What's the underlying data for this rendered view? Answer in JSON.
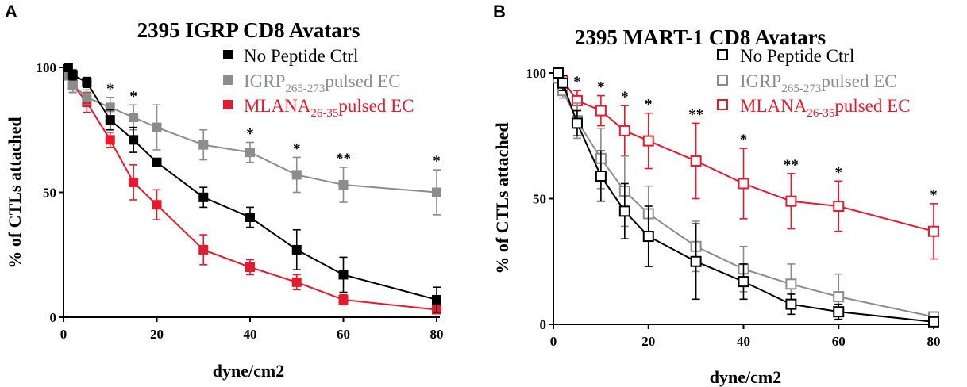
{
  "chart_data": [
    {
      "panel": "A",
      "type": "line",
      "title": "2395 IGRP CD8 Avatars",
      "xlabel": "dyne/cm2",
      "ylabel": "% of CTLs attached",
      "xlim": [
        0,
        80
      ],
      "ylim": [
        0,
        100
      ],
      "xticks": [
        "0",
        "20",
        "40",
        "60",
        "80"
      ],
      "yticks": [
        "0",
        "50",
        "100"
      ],
      "marker": "filled-square",
      "x": [
        1,
        2,
        5,
        10,
        15,
        20,
        30,
        40,
        50,
        60,
        80
      ],
      "series": [
        {
          "name": "No Peptide Ctrl",
          "legend_main": "No Peptide Ctrl",
          "legend_sub": "",
          "legend_tail": "",
          "color": "#000000",
          "values": [
            100,
            97,
            94,
            79,
            71,
            62,
            48,
            40,
            27,
            17,
            7
          ],
          "errors": [
            1,
            2,
            2,
            4,
            5,
            1,
            4,
            4,
            8,
            7,
            5
          ]
        },
        {
          "name": "IGRP265-273pulsed EC",
          "legend_main": "IGRP",
          "legend_sub": "265-273",
          "legend_tail": "pulsed EC",
          "color": "#8c8c8c",
          "values": [
            97,
            93,
            88,
            84,
            80,
            76,
            69,
            66,
            57,
            53,
            50
          ],
          "errors": [
            2,
            3,
            3,
            4,
            5,
            9,
            6,
            4,
            7,
            7,
            9
          ]
        },
        {
          "name": "MLANA26-35pulsed EC",
          "legend_main": "MLANA",
          "legend_sub": "26-35",
          "legend_tail": "pulsed EC",
          "color": "#e8192c",
          "values": [
            97,
            93,
            86,
            71,
            54,
            45,
            27,
            20,
            14,
            7,
            3
          ],
          "errors": [
            2,
            3,
            4,
            3,
            7,
            6,
            6,
            3,
            3,
            2,
            1
          ]
        }
      ],
      "significance": [
        {
          "x": 10,
          "label": "*"
        },
        {
          "x": 15,
          "label": "*"
        },
        {
          "x": 40,
          "label": "*"
        },
        {
          "x": 50,
          "label": "*"
        },
        {
          "x": 60,
          "label": "**"
        },
        {
          "x": 80,
          "label": "*"
        }
      ]
    },
    {
      "panel": "B",
      "type": "line",
      "title": "2395 MART-1 CD8 Avatars",
      "xlabel": "dyne/cm2",
      "ylabel": "% of CTLs attached",
      "xlim": [
        0,
        80
      ],
      "ylim": [
        0,
        100
      ],
      "xticks": [
        "0",
        "20",
        "40",
        "60",
        "80"
      ],
      "yticks": [
        "0",
        "50",
        "100"
      ],
      "marker": "open-square",
      "x": [
        1,
        2,
        5,
        10,
        15,
        20,
        30,
        40,
        50,
        60,
        80
      ],
      "series": [
        {
          "name": "No Peptide Ctrl",
          "legend_main": "No Peptide Ctrl",
          "legend_sub": "",
          "legend_tail": "",
          "color": "#000000",
          "values": [
            100,
            96,
            80,
            59,
            45,
            35,
            25,
            17,
            8,
            5,
            1
          ],
          "errors": [
            1,
            3,
            5,
            10,
            11,
            12,
            15,
            7,
            4,
            3,
            1
          ]
        },
        {
          "name": "IGRP265-273pulsed EC",
          "legend_main": "IGRP",
          "legend_sub": "265-273",
          "legend_tail": "pulsed EC",
          "color": "#8c8c8c",
          "values": [
            98,
            93,
            81,
            66,
            53,
            44,
            31,
            22,
            16,
            11,
            3
          ],
          "errors": [
            2,
            3,
            7,
            12,
            14,
            11,
            10,
            9,
            8,
            9,
            1
          ]
        },
        {
          "name": "MLANA26-35pulsed EC",
          "legend_main": "MLANA",
          "legend_sub": "26-35",
          "legend_tail": "pulsed EC",
          "color": "#e8192c",
          "values": [
            100,
            97,
            89,
            85,
            77,
            73,
            65,
            56,
            49,
            47,
            37
          ],
          "errors": [
            1,
            2,
            4,
            6,
            10,
            11,
            15,
            14,
            11,
            10,
            11
          ]
        }
      ],
      "significance": [
        {
          "x": 5,
          "label": "*"
        },
        {
          "x": 10,
          "label": "*"
        },
        {
          "x": 15,
          "label": "*"
        },
        {
          "x": 20,
          "label": "*"
        },
        {
          "x": 30,
          "label": "**"
        },
        {
          "x": 40,
          "label": "*"
        },
        {
          "x": 50,
          "label": "**"
        },
        {
          "x": 60,
          "label": "*"
        },
        {
          "x": 80,
          "label": "*"
        }
      ]
    }
  ]
}
